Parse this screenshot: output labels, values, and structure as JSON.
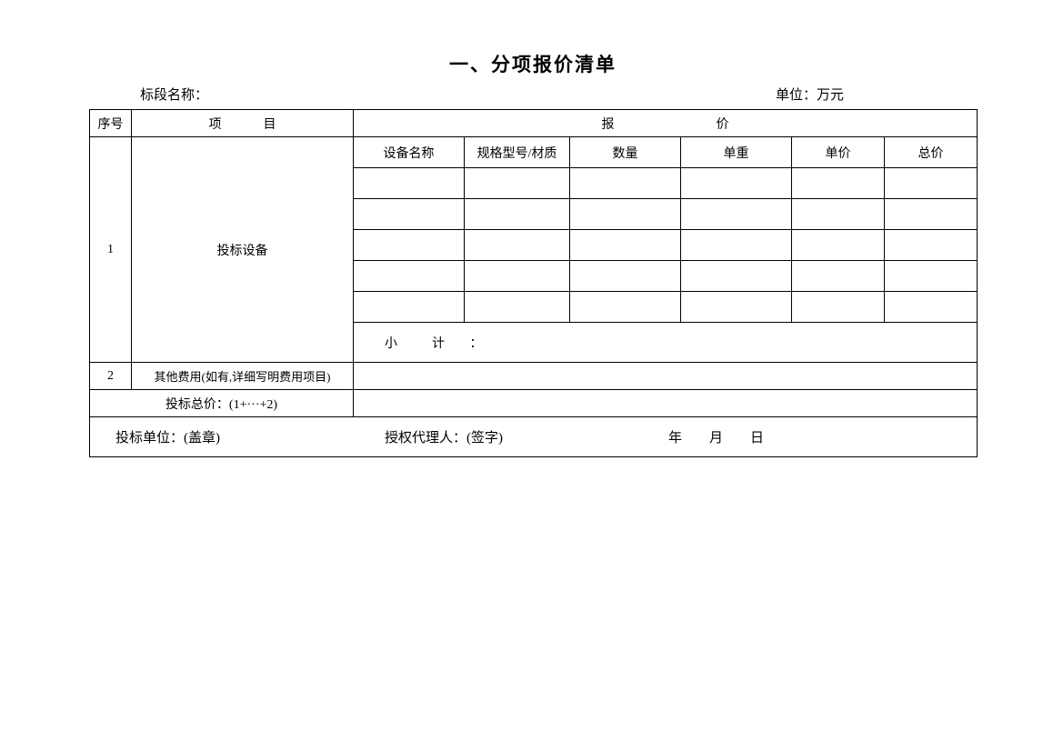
{
  "title": "一、分项报价清单",
  "header": {
    "left_label": "标段名称：",
    "right_label": "单位：万元"
  },
  "table": {
    "columns": {
      "seq": "序号",
      "item": "项　目",
      "quote": "报　　价",
      "equip_name": "设备名称",
      "spec": "规格型号/材质",
      "qty": "数量",
      "weight": "单重",
      "unit_price": "单价",
      "total_price": "总价"
    },
    "row1": {
      "seq": "1",
      "item": "投标设备",
      "subtotal_label": "小　计 ："
    },
    "row2": {
      "seq": "2",
      "item": "其他费用(如有,详细写明费用项目)"
    },
    "total_row": {
      "label": "投标总价：(1+···+2)"
    },
    "sign_row": {
      "unit": "投标单位：(盖章)",
      "agent": "授权代理人：(签字)",
      "date": "年　　月　　日"
    },
    "widths": {
      "seq": 46,
      "item": 244,
      "name": 122,
      "spec": 116,
      "qty": 122,
      "weight": 122,
      "price": 102,
      "total": 102
    },
    "heights": {
      "header": 30,
      "sub": 34,
      "empty": 34,
      "subtotal": 44,
      "other": 30,
      "total": 30,
      "sign": 44
    },
    "colors": {
      "border": "#000000",
      "background": "#ffffff",
      "text": "#000000"
    },
    "fontsize": {
      "title": 21,
      "header": 15,
      "cell": 14
    },
    "empty_rows": 5
  }
}
